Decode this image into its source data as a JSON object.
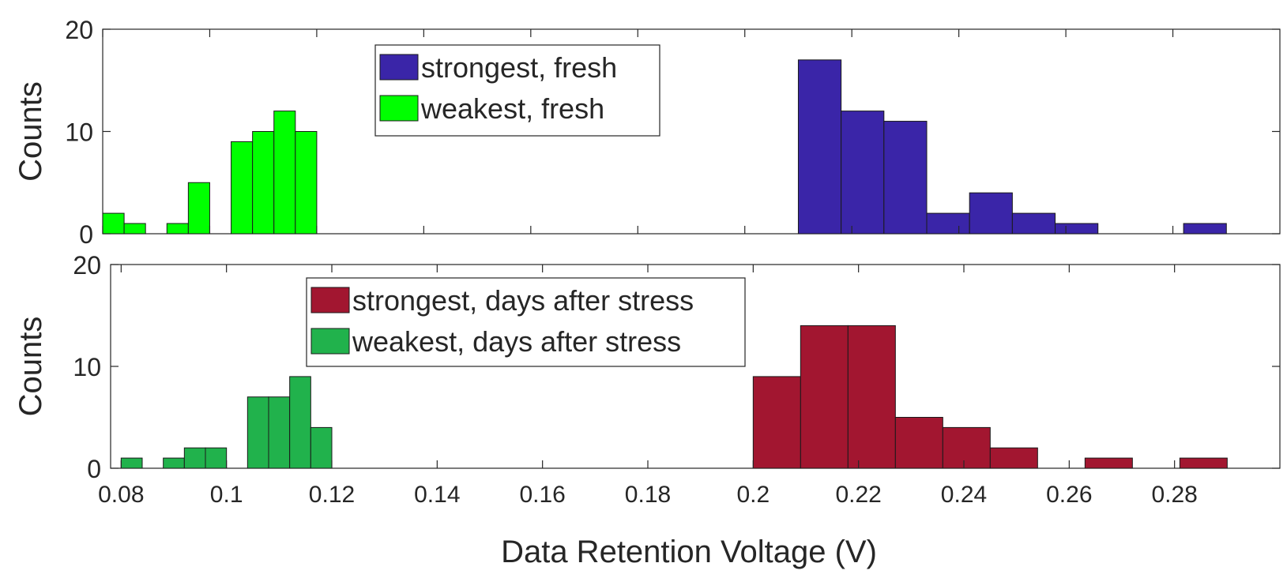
{
  "chart_data": [
    {
      "type": "bar",
      "subtype": "histogram",
      "ylabel": "Counts",
      "xlim": [
        0.08,
        0.3
      ],
      "ylim": [
        0,
        20
      ],
      "yticks": [
        0,
        10,
        20
      ],
      "grid": false,
      "legend_placement": "top-left",
      "series": [
        {
          "name": "strongest, fresh",
          "color": "#3A25A8",
          "bins": [
            {
              "x0": 0.21,
              "x1": 0.218,
              "value": 17
            },
            {
              "x0": 0.218,
              "x1": 0.226,
              "value": 12
            },
            {
              "x0": 0.226,
              "x1": 0.234,
              "value": 11
            },
            {
              "x0": 0.234,
              "x1": 0.242,
              "value": 2
            },
            {
              "x0": 0.242,
              "x1": 0.25,
              "value": 4
            },
            {
              "x0": 0.25,
              "x1": 0.258,
              "value": 2
            },
            {
              "x0": 0.258,
              "x1": 0.266,
              "value": 1
            },
            {
              "x0": 0.266,
              "x1": 0.274,
              "value": 0
            },
            {
              "x0": 0.274,
              "x1": 0.282,
              "value": 0
            },
            {
              "x0": 0.282,
              "x1": 0.29,
              "value": 1
            }
          ]
        },
        {
          "name": "weakest, fresh",
          "color": "#00FF00",
          "bins": [
            {
              "x0": 0.08,
              "x1": 0.084,
              "value": 2
            },
            {
              "x0": 0.084,
              "x1": 0.088,
              "value": 1
            },
            {
              "x0": 0.088,
              "x1": 0.092,
              "value": 0
            },
            {
              "x0": 0.092,
              "x1": 0.096,
              "value": 1
            },
            {
              "x0": 0.096,
              "x1": 0.1,
              "value": 5
            },
            {
              "x0": 0.1,
              "x1": 0.104,
              "value": 0
            },
            {
              "x0": 0.104,
              "x1": 0.108,
              "value": 9
            },
            {
              "x0": 0.108,
              "x1": 0.112,
              "value": 10
            },
            {
              "x0": 0.112,
              "x1": 0.116,
              "value": 12
            },
            {
              "x0": 0.116,
              "x1": 0.12,
              "value": 10
            }
          ]
        }
      ]
    },
    {
      "type": "bar",
      "subtype": "histogram",
      "xlabel": "Data Retention Voltage (V)",
      "ylabel": "Counts",
      "xlim": [
        0.078,
        0.3
      ],
      "xticks": [
        0.08,
        0.1,
        0.12,
        0.14,
        0.16,
        0.18,
        0.2,
        0.22,
        0.24,
        0.26,
        0.28
      ],
      "xtick_labels": [
        "0.08",
        "0.1",
        "0.12",
        "0.14",
        "0.16",
        "0.18",
        "0.2",
        "0.22",
        "0.24",
        "0.26",
        "0.28"
      ],
      "ylim": [
        0,
        20
      ],
      "yticks": [
        0,
        10,
        20
      ],
      "grid": false,
      "legend_placement": "top-left",
      "series": [
        {
          "name": "strongest, days after stress",
          "color": "#A21630",
          "bins": [
            {
              "x0": 0.2,
              "x1": 0.209,
              "value": 9
            },
            {
              "x0": 0.209,
              "x1": 0.218,
              "value": 14
            },
            {
              "x0": 0.218,
              "x1": 0.227,
              "value": 14
            },
            {
              "x0": 0.227,
              "x1": 0.236,
              "value": 5
            },
            {
              "x0": 0.236,
              "x1": 0.245,
              "value": 4
            },
            {
              "x0": 0.245,
              "x1": 0.254,
              "value": 2
            },
            {
              "x0": 0.254,
              "x1": 0.263,
              "value": 0
            },
            {
              "x0": 0.263,
              "x1": 0.272,
              "value": 1
            },
            {
              "x0": 0.272,
              "x1": 0.281,
              "value": 0
            },
            {
              "x0": 0.281,
              "x1": 0.29,
              "value": 1
            }
          ]
        },
        {
          "name": "weakest, days after stress",
          "color": "#21B24C",
          "bins": [
            {
              "x0": 0.08,
              "x1": 0.084,
              "value": 1
            },
            {
              "x0": 0.084,
              "x1": 0.088,
              "value": 0
            },
            {
              "x0": 0.088,
              "x1": 0.092,
              "value": 1
            },
            {
              "x0": 0.092,
              "x1": 0.096,
              "value": 2
            },
            {
              "x0": 0.096,
              "x1": 0.1,
              "value": 2
            },
            {
              "x0": 0.1,
              "x1": 0.104,
              "value": 0
            },
            {
              "x0": 0.104,
              "x1": 0.108,
              "value": 7
            },
            {
              "x0": 0.108,
              "x1": 0.112,
              "value": 7
            },
            {
              "x0": 0.112,
              "x1": 0.116,
              "value": 9
            },
            {
              "x0": 0.116,
              "x1": 0.12,
              "value": 4
            }
          ]
        }
      ]
    }
  ]
}
